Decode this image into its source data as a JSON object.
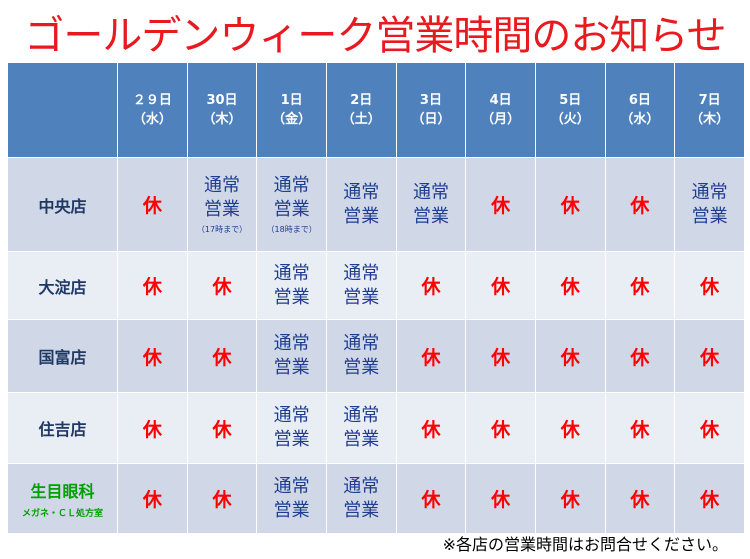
{
  "title": "ゴールデンウィーク営業時間のお知らせ",
  "columns": [
    {
      "day": "２９日",
      "weekday": "（水）"
    },
    {
      "day": "30日",
      "weekday": "（木）"
    },
    {
      "day": "1日",
      "weekday": "（金）"
    },
    {
      "day": "2日",
      "weekday": "（土）"
    },
    {
      "day": "3日",
      "weekday": "（日）"
    },
    {
      "day": "4日",
      "weekday": "（月）"
    },
    {
      "day": "5日",
      "weekday": "（火）"
    },
    {
      "day": "6日",
      "weekday": "（水）"
    },
    {
      "day": "7日",
      "weekday": "（木）"
    }
  ],
  "labels": {
    "closed": "休",
    "open_line1": "通常",
    "open_line2": "営業"
  },
  "rows": [
    {
      "store": "中央店",
      "notes": {
        "1": "（17時まで）",
        "2": "（18時まで）"
      },
      "status": [
        "closed",
        "open",
        "open",
        "open",
        "open",
        "closed",
        "closed",
        "closed",
        "open"
      ]
    },
    {
      "store": "大淀店",
      "status": [
        "closed",
        "closed",
        "open",
        "open",
        "closed",
        "closed",
        "closed",
        "closed",
        "closed"
      ]
    },
    {
      "store": "国富店",
      "status": [
        "closed",
        "closed",
        "open",
        "open",
        "closed",
        "closed",
        "closed",
        "closed",
        "closed"
      ]
    },
    {
      "store": "住吉店",
      "status": [
        "closed",
        "closed",
        "open",
        "open",
        "closed",
        "closed",
        "closed",
        "closed",
        "closed"
      ]
    },
    {
      "store": "生目眼科",
      "store_sub": "メガネ・ＣＬ処方室",
      "status": [
        "closed",
        "closed",
        "open",
        "open",
        "closed",
        "closed",
        "closed",
        "closed",
        "closed"
      ]
    }
  ],
  "footer_note": "※各店の営業時間はお問合せください。",
  "colors": {
    "title": "#e8191f",
    "header_bg": "#4f81bd",
    "row_odd": "#d0d8e8",
    "row_even": "#e9edf4",
    "closed": "#ff0000",
    "open": "#1f3d8f",
    "store": "#1f3864",
    "store_green": "#00a000"
  }
}
